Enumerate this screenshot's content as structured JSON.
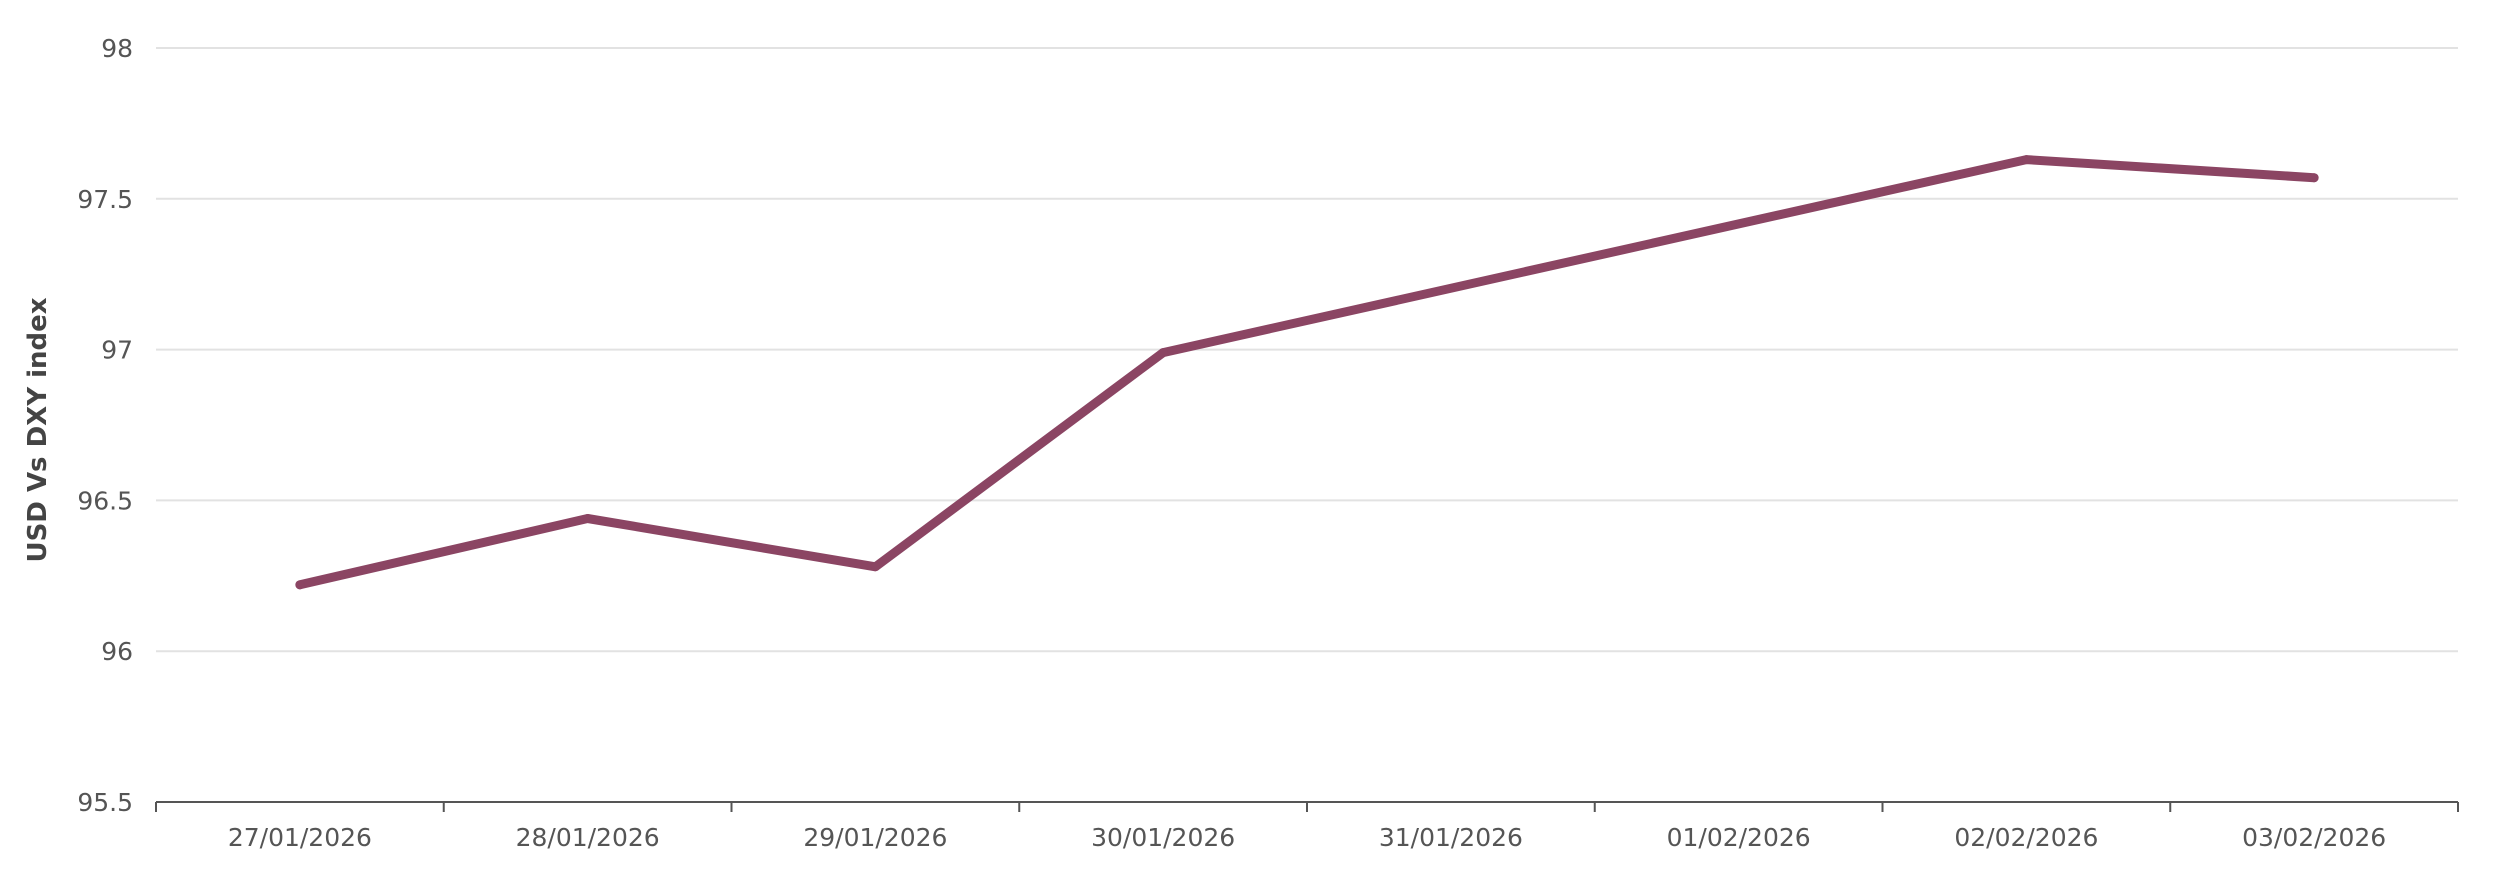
{
  "chart_data": {
    "type": "line",
    "title": "",
    "xlabel": "",
    "ylabel": "USD Vs DXY index",
    "categories": [
      "27/01/2026",
      "28/01/2026",
      "29/01/2026",
      "30/01/2026",
      "31/01/2026",
      "01/02/2026",
      "02/02/2026",
      "03/02/2026"
    ],
    "y_ticks": [
      "95.5",
      "96",
      "96.5",
      "97",
      "97.5",
      "98"
    ],
    "ylim": [
      95.5,
      98
    ],
    "grid": true,
    "legend": "none",
    "series": [
      {
        "color": "#8b4563",
        "points": [
          {
            "x": "27/01/2026",
            "y": 96.22
          },
          {
            "x": "28/01/2026",
            "y": 96.44
          },
          {
            "x": "29/01/2026",
            "y": 96.28
          },
          {
            "x": "30/01/2026",
            "y": 96.99
          },
          {
            "x": "02/02/2026",
            "y": 97.63
          },
          {
            "x": "03/02/2026",
            "y": 97.57
          }
        ]
      }
    ]
  }
}
